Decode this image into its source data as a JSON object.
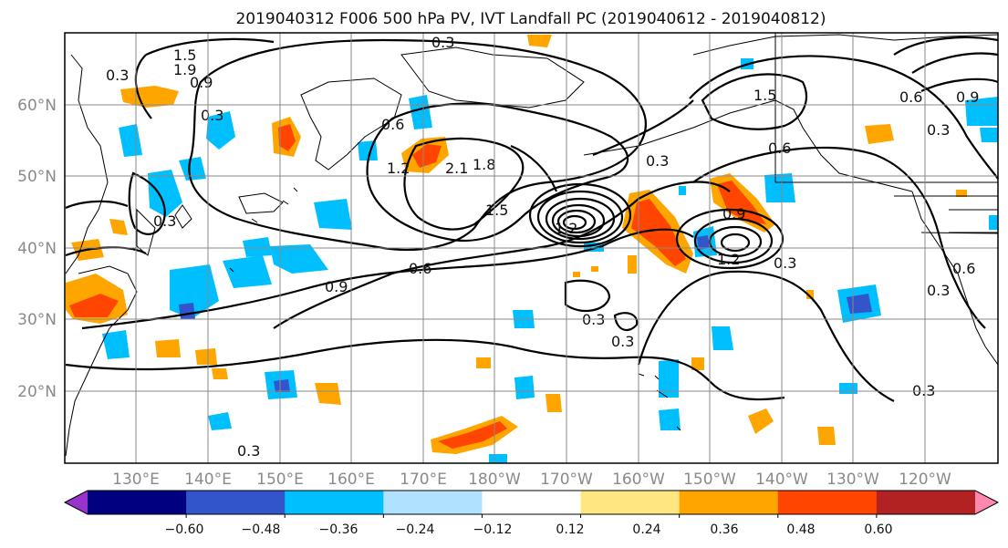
{
  "figure": {
    "title": "2019040312 F006 500 hPa PV, IVT Landfall PC (2019040612 - 2019040812)"
  },
  "map": {
    "lat_labels": [
      "60°N",
      "50°N",
      "40°N",
      "30°N",
      "20°N"
    ],
    "lon_labels": [
      "130°E",
      "140°E",
      "150°E",
      "160°E",
      "170°E",
      "180°W",
      "170°W",
      "160°W",
      "150°W",
      "140°W",
      "130°W",
      "120°W"
    ],
    "contour_color": "#000000",
    "grid_color": "#8a8a8a",
    "contour_labels": [
      "0.3",
      "1.5",
      "1.9",
      "0.3",
      "0.9",
      "0.3",
      "0.6",
      "2.1",
      "1.8",
      "1.5",
      "1.2",
      "1.2",
      "0.9",
      "0.6",
      "0.3",
      "0.3",
      "0.3",
      "0.9",
      "1.5",
      "1.2",
      "0.6",
      "0.9",
      "0.3",
      "0.6",
      "0.3",
      "0.3",
      "0.3",
      "0.6",
      "0.3",
      "0.3"
    ]
  },
  "colorbar": {
    "tick_labels": [
      "−0.60",
      "−0.48",
      "−0.36",
      "−0.24",
      "−0.12",
      "0.12",
      "0.24",
      "0.36",
      "0.48",
      "0.60"
    ],
    "colors": [
      "#9933cc",
      "#000080",
      "#3355cc",
      "#00bfff",
      "#b0e2ff",
      "#ffffff",
      "#ffe680",
      "#ffa500",
      "#ff4500",
      "#b22222",
      "#ff88b0"
    ]
  }
}
